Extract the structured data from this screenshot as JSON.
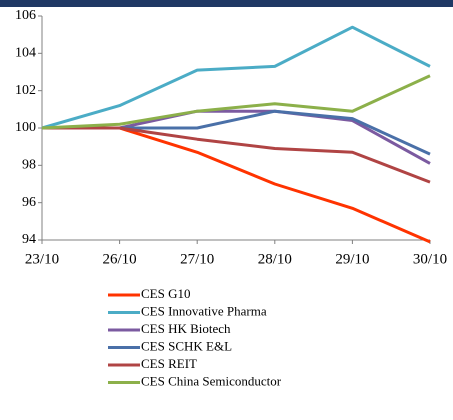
{
  "chart_data": {
    "type": "line",
    "categories": [
      "23/10",
      "26/10",
      "27/10",
      "28/10",
      "29/10",
      "30/10"
    ],
    "series": [
      {
        "name": "CES G10",
        "color": "#ff3300",
        "values": [
          100,
          100,
          98.7,
          97,
          95.7,
          93.9
        ]
      },
      {
        "name": "CES Innovative Pharma",
        "color": "#4bacc6",
        "values": [
          100,
          101.2,
          103.1,
          103.3,
          105.4,
          103.3
        ]
      },
      {
        "name": "CES HK Biotech",
        "color": "#7b5aa0",
        "values": [
          100,
          100,
          100.9,
          100.9,
          100.4,
          98.1
        ]
      },
      {
        "name": "CES SCHK E&L",
        "color": "#4a70a8",
        "values": [
          100,
          100,
          100,
          100.9,
          100.5,
          98.6
        ]
      },
      {
        "name": "CES REIT",
        "color": "#b04444",
        "values": [
          100,
          100,
          99.4,
          98.9,
          98.7,
          97.1
        ]
      },
      {
        "name": "CES China Semiconductor",
        "color": "#8cb04a",
        "values": [
          100,
          100.2,
          100.9,
          101.3,
          100.9,
          102.8
        ]
      }
    ],
    "ylim": [
      94,
      106
    ],
    "yticks": [
      94,
      96,
      98,
      100,
      102,
      104,
      106
    ],
    "grid": false,
    "legend": "bottom"
  }
}
